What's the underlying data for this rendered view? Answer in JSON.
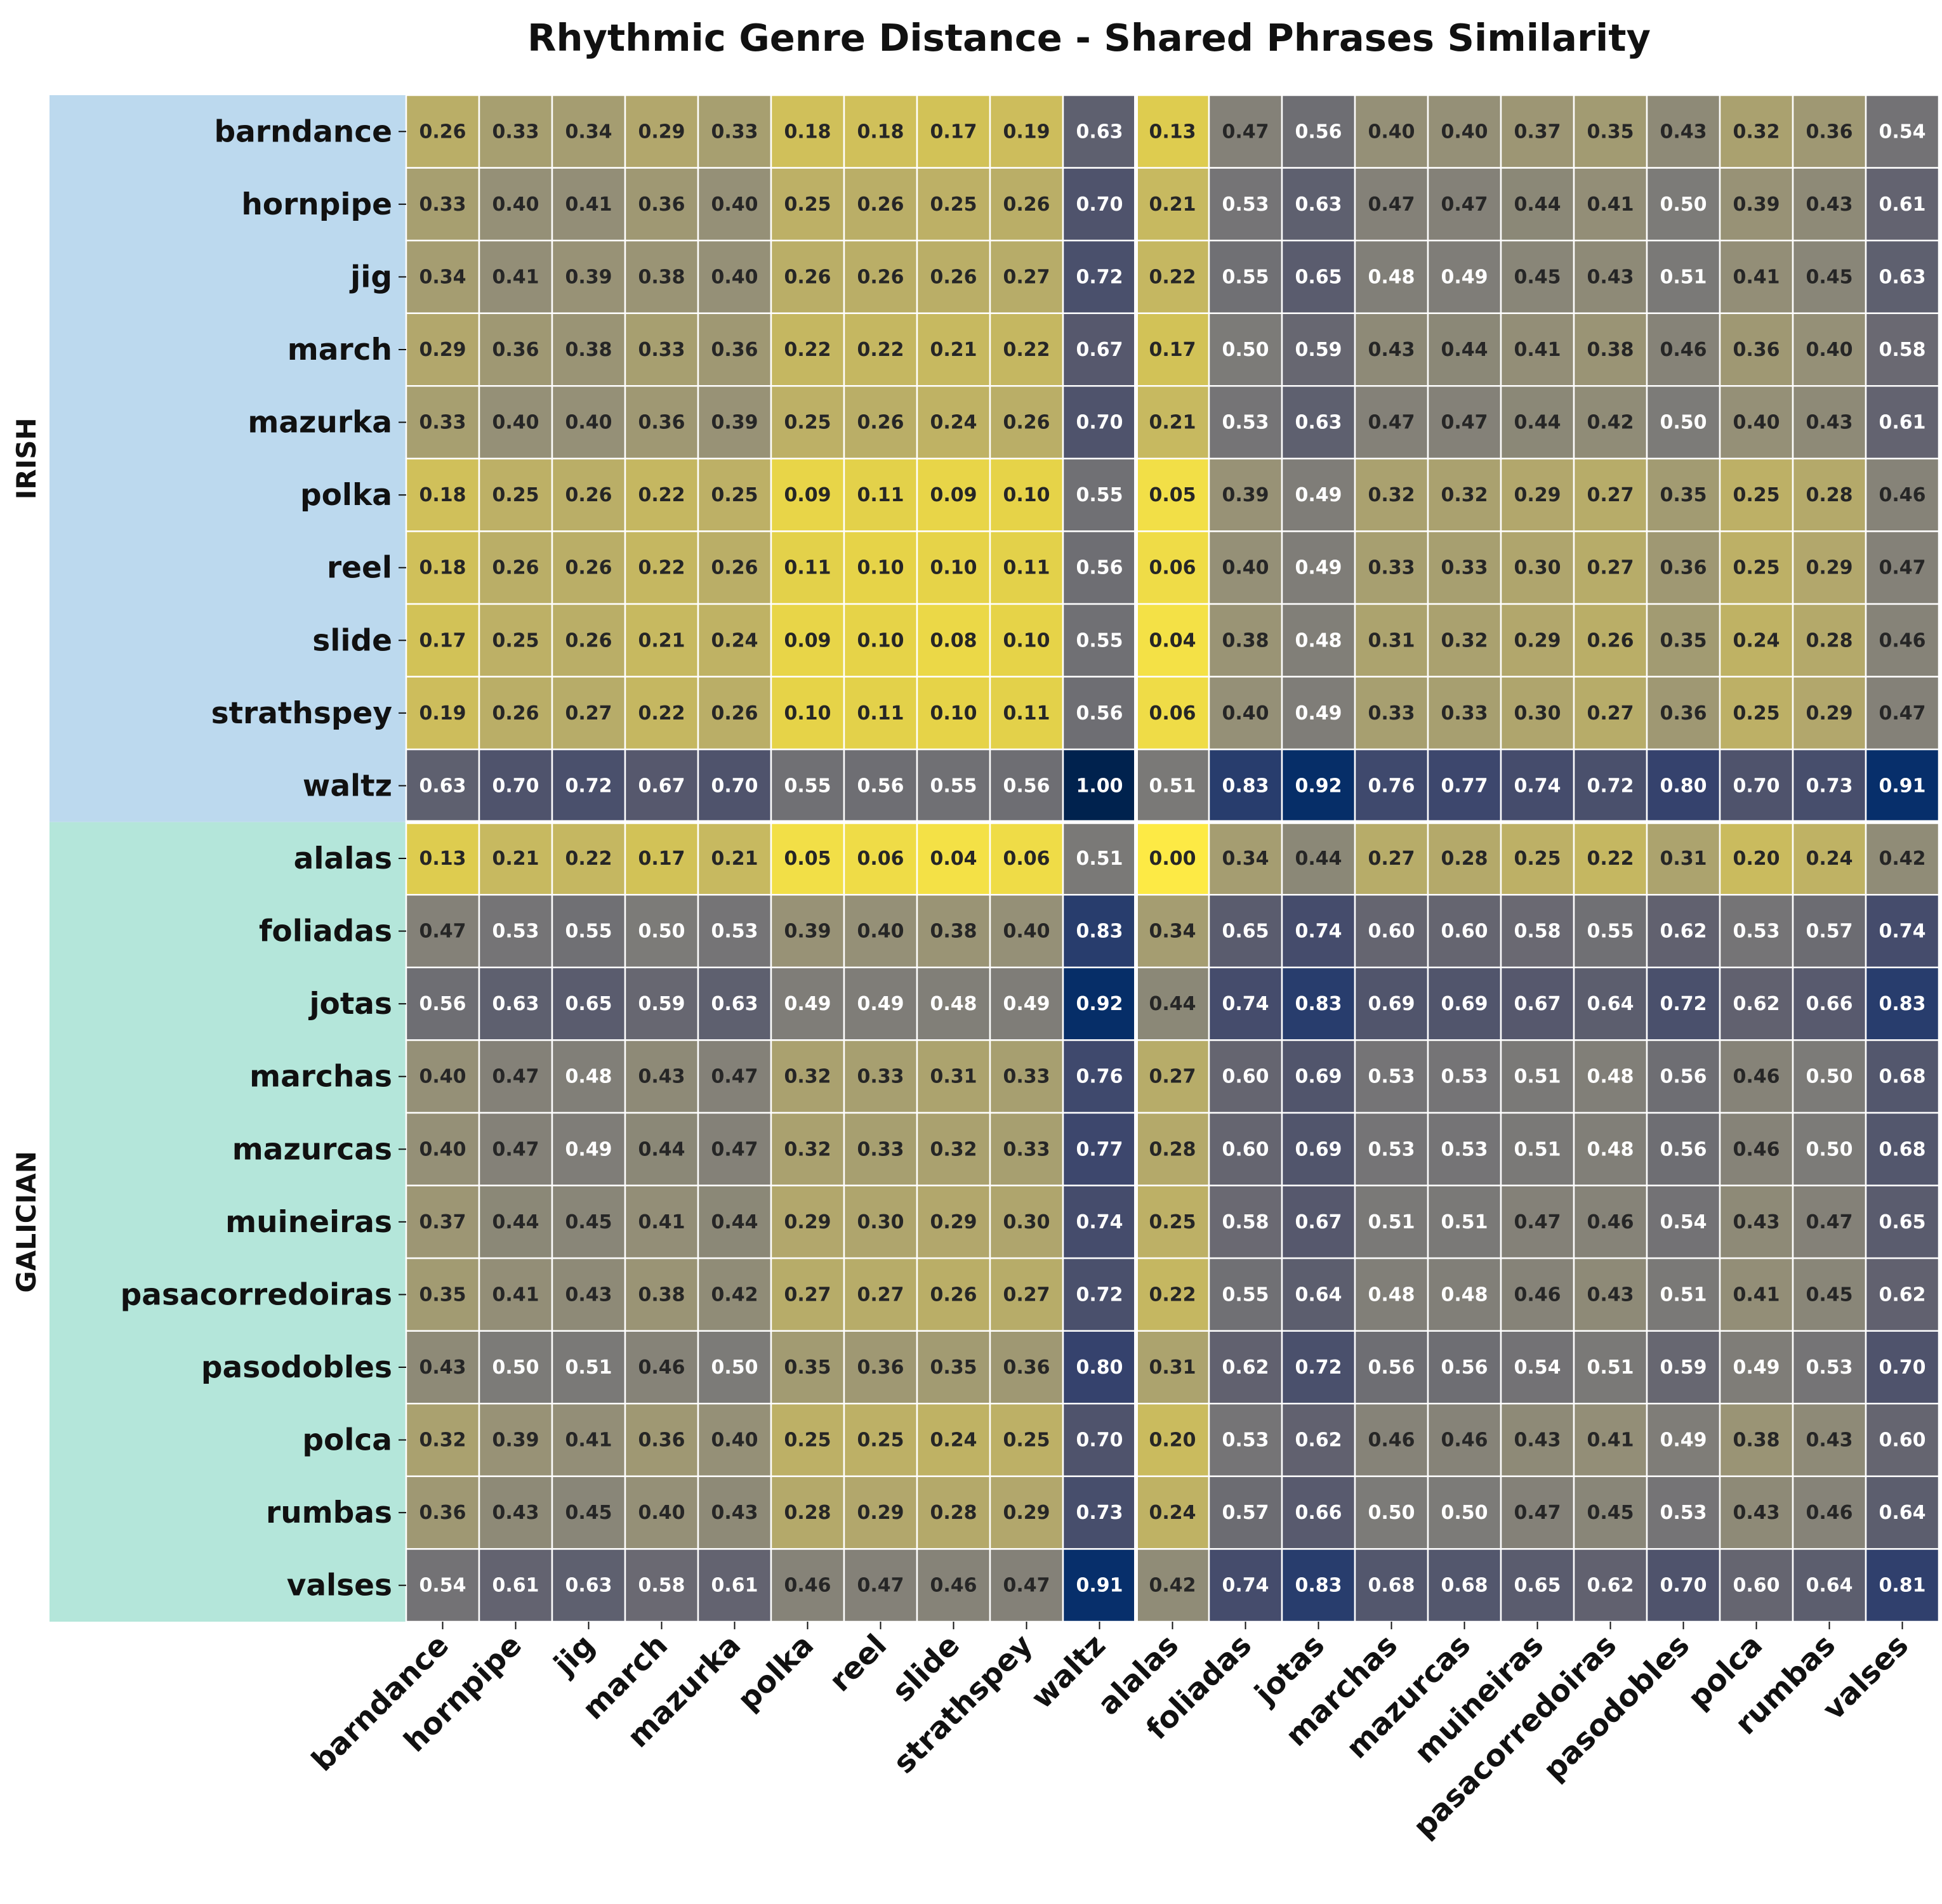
{
  "chart_data": {
    "type": "heatmap",
    "title": "Rhythmic Genre Distance - Shared Phrases Similarity",
    "row_groups": [
      {
        "name": "IRISH",
        "color": "#bcd9ee",
        "start": 0,
        "count": 10
      },
      {
        "name": "GALICIAN",
        "color": "#b4e6da",
        "start": 10,
        "count": 11
      }
    ],
    "labels": [
      "barndance",
      "hornpipe",
      "jig",
      "march",
      "mazurka",
      "polka",
      "reel",
      "slide",
      "strathspey",
      "waltz",
      "alalas",
      "foliadas",
      "jotas",
      "marchas",
      "mazurcas",
      "muineiras",
      "pasacorredoiras",
      "pasodobles",
      "polca",
      "rumbas",
      "valses"
    ],
    "colormap": "cividis_r",
    "value_range": [
      0,
      1
    ],
    "values": [
      [
        0.26,
        0.33,
        0.34,
        0.29,
        0.33,
        0.18,
        0.18,
        0.17,
        0.19,
        0.63,
        0.13,
        0.47,
        0.56,
        0.4,
        0.4,
        0.37,
        0.35,
        0.43,
        0.32,
        0.36,
        0.54
      ],
      [
        0.33,
        0.4,
        0.41,
        0.36,
        0.4,
        0.25,
        0.26,
        0.25,
        0.26,
        0.7,
        0.21,
        0.53,
        0.63,
        0.47,
        0.47,
        0.44,
        0.41,
        0.5,
        0.39,
        0.43,
        0.61
      ],
      [
        0.34,
        0.41,
        0.39,
        0.38,
        0.4,
        0.26,
        0.26,
        0.26,
        0.27,
        0.72,
        0.22,
        0.55,
        0.65,
        0.48,
        0.49,
        0.45,
        0.43,
        0.51,
        0.41,
        0.45,
        0.63
      ],
      [
        0.29,
        0.36,
        0.38,
        0.33,
        0.36,
        0.22,
        0.22,
        0.21,
        0.22,
        0.67,
        0.17,
        0.5,
        0.59,
        0.43,
        0.44,
        0.41,
        0.38,
        0.46,
        0.36,
        0.4,
        0.58
      ],
      [
        0.33,
        0.4,
        0.4,
        0.36,
        0.39,
        0.25,
        0.26,
        0.24,
        0.26,
        0.7,
        0.21,
        0.53,
        0.63,
        0.47,
        0.47,
        0.44,
        0.42,
        0.5,
        0.4,
        0.43,
        0.61
      ],
      [
        0.18,
        0.25,
        0.26,
        0.22,
        0.25,
        0.09,
        0.11,
        0.09,
        0.1,
        0.55,
        0.05,
        0.39,
        0.49,
        0.32,
        0.32,
        0.29,
        0.27,
        0.35,
        0.25,
        0.28,
        0.46
      ],
      [
        0.18,
        0.26,
        0.26,
        0.22,
        0.26,
        0.11,
        0.1,
        0.1,
        0.11,
        0.56,
        0.06,
        0.4,
        0.49,
        0.33,
        0.33,
        0.3,
        0.27,
        0.36,
        0.25,
        0.29,
        0.47
      ],
      [
        0.17,
        0.25,
        0.26,
        0.21,
        0.24,
        0.09,
        0.1,
        0.08,
        0.1,
        0.55,
        0.04,
        0.38,
        0.48,
        0.31,
        0.32,
        0.29,
        0.26,
        0.35,
        0.24,
        0.28,
        0.46
      ],
      [
        0.19,
        0.26,
        0.27,
        0.22,
        0.26,
        0.1,
        0.11,
        0.1,
        0.11,
        0.56,
        0.06,
        0.4,
        0.49,
        0.33,
        0.33,
        0.3,
        0.27,
        0.36,
        0.25,
        0.29,
        0.47
      ],
      [
        0.63,
        0.7,
        0.72,
        0.67,
        0.7,
        0.55,
        0.56,
        0.55,
        0.56,
        1.0,
        0.51,
        0.83,
        0.92,
        0.76,
        0.77,
        0.74,
        0.72,
        0.8,
        0.7,
        0.73,
        0.91
      ],
      [
        0.13,
        0.21,
        0.22,
        0.17,
        0.21,
        0.05,
        0.06,
        0.04,
        0.06,
        0.51,
        0.0,
        0.34,
        0.44,
        0.27,
        0.28,
        0.25,
        0.22,
        0.31,
        0.2,
        0.24,
        0.42
      ],
      [
        0.47,
        0.53,
        0.55,
        0.5,
        0.53,
        0.39,
        0.4,
        0.38,
        0.4,
        0.83,
        0.34,
        0.65,
        0.74,
        0.6,
        0.6,
        0.58,
        0.55,
        0.62,
        0.53,
        0.57,
        0.74
      ],
      [
        0.56,
        0.63,
        0.65,
        0.59,
        0.63,
        0.49,
        0.49,
        0.48,
        0.49,
        0.92,
        0.44,
        0.74,
        0.83,
        0.69,
        0.69,
        0.67,
        0.64,
        0.72,
        0.62,
        0.66,
        0.83
      ],
      [
        0.4,
        0.47,
        0.48,
        0.43,
        0.47,
        0.32,
        0.33,
        0.31,
        0.33,
        0.76,
        0.27,
        0.6,
        0.69,
        0.53,
        0.53,
        0.51,
        0.48,
        0.56,
        0.46,
        0.5,
        0.68
      ],
      [
        0.4,
        0.47,
        0.49,
        0.44,
        0.47,
        0.32,
        0.33,
        0.32,
        0.33,
        0.77,
        0.28,
        0.6,
        0.69,
        0.53,
        0.53,
        0.51,
        0.48,
        0.56,
        0.46,
        0.5,
        0.68
      ],
      [
        0.37,
        0.44,
        0.45,
        0.41,
        0.44,
        0.29,
        0.3,
        0.29,
        0.3,
        0.74,
        0.25,
        0.58,
        0.67,
        0.51,
        0.51,
        0.47,
        0.46,
        0.54,
        0.43,
        0.47,
        0.65
      ],
      [
        0.35,
        0.41,
        0.43,
        0.38,
        0.42,
        0.27,
        0.27,
        0.26,
        0.27,
        0.72,
        0.22,
        0.55,
        0.64,
        0.48,
        0.48,
        0.46,
        0.43,
        0.51,
        0.41,
        0.45,
        0.62
      ],
      [
        0.43,
        0.5,
        0.51,
        0.46,
        0.5,
        0.35,
        0.36,
        0.35,
        0.36,
        0.8,
        0.31,
        0.62,
        0.72,
        0.56,
        0.56,
        0.54,
        0.51,
        0.59,
        0.49,
        0.53,
        0.7
      ],
      [
        0.32,
        0.39,
        0.41,
        0.36,
        0.4,
        0.25,
        0.25,
        0.24,
        0.25,
        0.7,
        0.2,
        0.53,
        0.62,
        0.46,
        0.46,
        0.43,
        0.41,
        0.49,
        0.38,
        0.43,
        0.6
      ],
      [
        0.36,
        0.43,
        0.45,
        0.4,
        0.43,
        0.28,
        0.29,
        0.28,
        0.29,
        0.73,
        0.24,
        0.57,
        0.66,
        0.5,
        0.5,
        0.47,
        0.45,
        0.53,
        0.43,
        0.46,
        0.64
      ],
      [
        0.54,
        0.61,
        0.63,
        0.58,
        0.61,
        0.46,
        0.47,
        0.46,
        0.47,
        0.91,
        0.42,
        0.74,
        0.83,
        0.68,
        0.68,
        0.65,
        0.62,
        0.7,
        0.6,
        0.64,
        0.81
      ]
    ],
    "cell_label_format": "0.00",
    "cell_separator_color": "#ffffff",
    "group_separator_color": "#ffffff"
  }
}
